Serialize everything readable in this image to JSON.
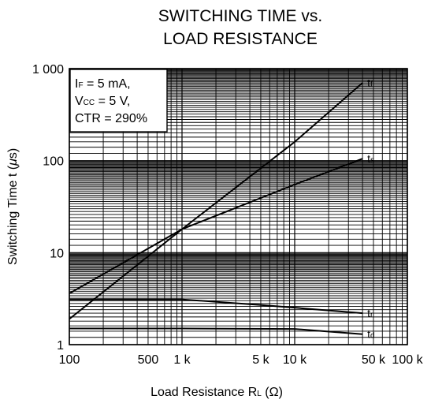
{
  "chart_data": {
    "type": "line",
    "title_lines": [
      "SWITCHING TIME vs.",
      "LOAD RESISTANCE"
    ],
    "xlabel": {
      "main": "Load Resistance  R",
      "sub": "L",
      "unit": " (Ω)"
    },
    "ylabel": {
      "main": "Switching Time  t (",
      "mu": "μ",
      "unit": "s)"
    },
    "x_scale": "log",
    "y_scale": "log",
    "xlim": [
      100,
      100000
    ],
    "ylim": [
      1,
      1000
    ],
    "grid": true,
    "x_ticks": [
      {
        "value": 100,
        "label": "100"
      },
      {
        "value": 500,
        "label": "500"
      },
      {
        "value": 1000,
        "label": "1 k"
      },
      {
        "value": 5000,
        "label": "5 k"
      },
      {
        "value": 10000,
        "label": "10 k"
      },
      {
        "value": 50000,
        "label": "50 k"
      },
      {
        "value": 100000,
        "label": "100 k"
      }
    ],
    "y_ticks": [
      {
        "value": 1,
        "label": "1"
      },
      {
        "value": 10,
        "label": "10"
      },
      {
        "value": 100,
        "label": "100"
      },
      {
        "value": 1000,
        "label": "1 000"
      }
    ],
    "conditions": [
      {
        "main": "I",
        "sub": "F",
        "rest": " = 5 mA,"
      },
      {
        "main": "V",
        "sub": "CC",
        "rest": " = 5 V,"
      },
      {
        "main": "CTR = 290%",
        "sub": "",
        "rest": ""
      }
    ],
    "series": [
      {
        "name": "tf",
        "label_main": "t",
        "label_sub": "f",
        "x": [
          100,
          1000,
          10000,
          40000
        ],
        "y": [
          1.9,
          18,
          160,
          700
        ]
      },
      {
        "name": "ts",
        "label_main": "t",
        "label_sub": "s",
        "x": [
          100,
          700,
          1000,
          10000,
          40000
        ],
        "y": [
          3.6,
          14,
          18,
          55,
          105
        ]
      },
      {
        "name": "tr",
        "label_main": "t",
        "label_sub": "r",
        "x": [
          100,
          1000,
          5000,
          40000
        ],
        "y": [
          3.1,
          3.1,
          2.7,
          2.2
        ]
      },
      {
        "name": "td",
        "label_main": "t",
        "label_sub": "d",
        "x": [
          100,
          1000,
          10000,
          40000
        ],
        "y": [
          1.5,
          1.5,
          1.48,
          1.3
        ]
      }
    ]
  }
}
